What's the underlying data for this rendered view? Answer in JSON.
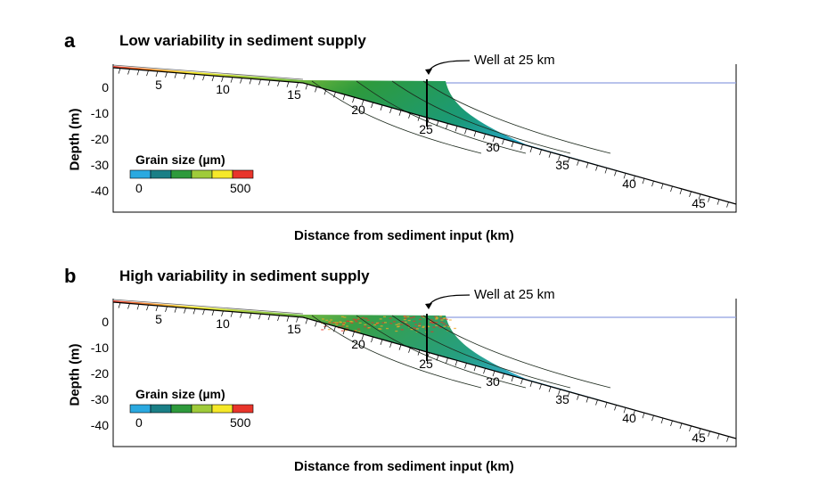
{
  "chart_data": [
    {
      "type": "area",
      "panel_letter": "a",
      "title": "Low variability in sediment supply",
      "xlabel": "Distance from sediment input (km)",
      "ylabel": "Depth (m)",
      "y_ticks": [
        "0",
        "-10",
        "-20",
        "-30",
        "-40"
      ],
      "km_ticks": [
        5,
        10,
        15,
        20,
        25,
        30,
        35,
        40,
        45
      ],
      "well_label": "Well at 25 km",
      "well_km": 25,
      "legend_title": "Grain size (µm)",
      "legend_min": "0",
      "legend_max": "500",
      "legend_colors": [
        "#2aa9e0",
        "#1a7f86",
        "#2e9a3c",
        "#9fcb3a",
        "#f5e829",
        "#e8352b"
      ],
      "variability": "low"
    },
    {
      "type": "area",
      "panel_letter": "b",
      "title": "High variability in sediment supply",
      "xlabel": "Distance from sediment input (km)",
      "ylabel": "Depth (m)",
      "y_ticks": [
        "0",
        "-10",
        "-20",
        "-30",
        "-40"
      ],
      "km_ticks": [
        5,
        10,
        15,
        20,
        25,
        30,
        35,
        40,
        45
      ],
      "well_label": "Well at 25 km",
      "well_km": 25,
      "legend_title": "Grain size (µm)",
      "legend_min": "0",
      "legend_max": "500",
      "legend_colors": [
        "#2aa9e0",
        "#1a7f86",
        "#2e9a3c",
        "#9fcb3a",
        "#f5e829",
        "#e8352b"
      ],
      "variability": "high"
    }
  ]
}
